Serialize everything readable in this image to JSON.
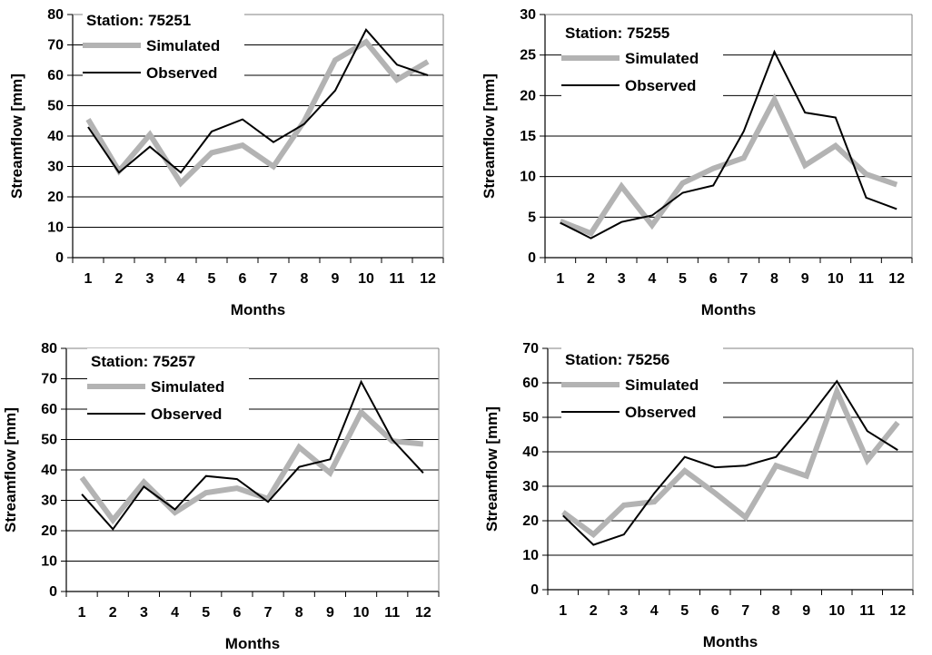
{
  "chart_data": [
    {
      "id": "75251",
      "type": "line",
      "categories": [
        "1",
        "2",
        "3",
        "4",
        "5",
        "6",
        "7",
        "8",
        "9",
        "10",
        "11",
        "12"
      ],
      "xlabel": "Months",
      "ylabel": "Streamflow [mm]",
      "ylim": [
        0,
        80
      ],
      "ystep": 10,
      "grid": true,
      "station_label": "Station: 75251",
      "series": [
        {
          "name": "Simulated",
          "color": "#b3b3b3",
          "values": [
            45.5,
            28.5,
            40.5,
            24.5,
            34.5,
            37,
            30,
            45,
            65,
            71,
            58.5,
            64.5
          ]
        },
        {
          "name": "Observed",
          "color": "#000000",
          "values": [
            43,
            28,
            36.5,
            28,
            41.5,
            45.5,
            38,
            44,
            55,
            75,
            63.5,
            60
          ]
        }
      ]
    },
    {
      "id": "75255",
      "type": "line",
      "categories": [
        "1",
        "2",
        "3",
        "4",
        "5",
        "6",
        "7",
        "8",
        "9",
        "10",
        "11",
        "12"
      ],
      "xlabel": "Months",
      "ylabel": "Streamflow [mm]",
      "ylim": [
        0,
        30
      ],
      "ystep": 5,
      "grid": true,
      "station_label": "Station: 75255",
      "series": [
        {
          "name": "Simulated",
          "color": "#b3b3b3",
          "values": [
            4.5,
            3,
            8.8,
            4,
            9.2,
            11,
            12.3,
            19.5,
            11.4,
            13.8,
            10.3,
            9
          ]
        },
        {
          "name": "Observed",
          "color": "#000000",
          "values": [
            4.3,
            2.4,
            4.4,
            5.2,
            8,
            8.9,
            15.6,
            25.4,
            17.9,
            17.3,
            7.4,
            6
          ]
        }
      ]
    },
    {
      "id": "75257",
      "type": "line",
      "categories": [
        "1",
        "2",
        "3",
        "4",
        "5",
        "6",
        "7",
        "8",
        "9",
        "10",
        "11",
        "12"
      ],
      "xlabel": "Months",
      "ylabel": "Streamflow [mm]",
      "ylim": [
        0,
        80
      ],
      "ystep": 10,
      "grid": true,
      "station_label": "Station: 75257",
      "series": [
        {
          "name": "Simulated",
          "color": "#b3b3b3",
          "values": [
            37.5,
            23.5,
            36,
            26,
            32.5,
            34,
            30.5,
            47.5,
            39,
            59,
            49.5,
            48.5
          ]
        },
        {
          "name": "Observed",
          "color": "#000000",
          "values": [
            32,
            20.5,
            34.5,
            27,
            38,
            37,
            29.5,
            41,
            43.5,
            69,
            50,
            39
          ]
        }
      ]
    },
    {
      "id": "75256",
      "type": "line",
      "categories": [
        "1",
        "2",
        "3",
        "4",
        "5",
        "6",
        "7",
        "8",
        "9",
        "10",
        "11",
        "12"
      ],
      "xlabel": "Months",
      "ylabel": "Streamflow [mm]",
      "ylim": [
        0,
        70
      ],
      "ystep": 10,
      "grid": true,
      "station_label": "Station: 75256",
      "series": [
        {
          "name": "Simulated",
          "color": "#b3b3b3",
          "values": [
            22.5,
            16,
            24.5,
            25.5,
            34.5,
            28,
            21,
            36,
            33,
            57.5,
            37.5,
            48.5
          ]
        },
        {
          "name": "Observed",
          "color": "#000000",
          "values": [
            21.5,
            13,
            16,
            28,
            38.5,
            35.5,
            36,
            38.5,
            49,
            60.5,
            46,
            40.5
          ]
        }
      ]
    }
  ]
}
